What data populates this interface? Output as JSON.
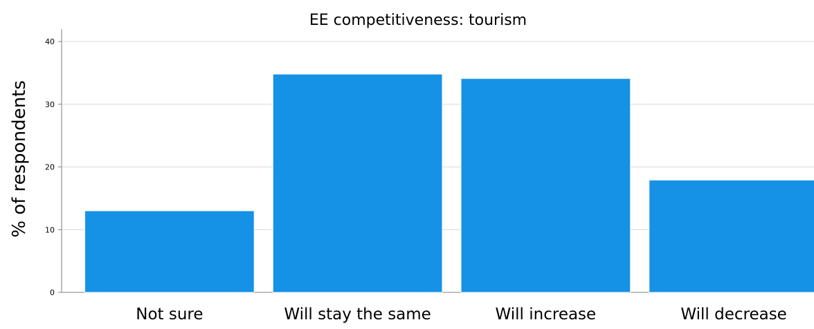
{
  "chart_data": {
    "type": "bar",
    "title": "EE competitiveness: tourism",
    "xlabel": "",
    "ylabel": "% of respondents",
    "categories": [
      "Not sure",
      "Will stay the same",
      "Will increase",
      "Will decrease"
    ],
    "values": [
      13.0,
      34.8,
      34.1,
      17.9
    ],
    "ylim": [
      0,
      42
    ],
    "yticks": [
      0,
      10,
      20,
      30,
      40
    ],
    "grid": true,
    "bar_color": "#1591e6",
    "legend": null
  }
}
